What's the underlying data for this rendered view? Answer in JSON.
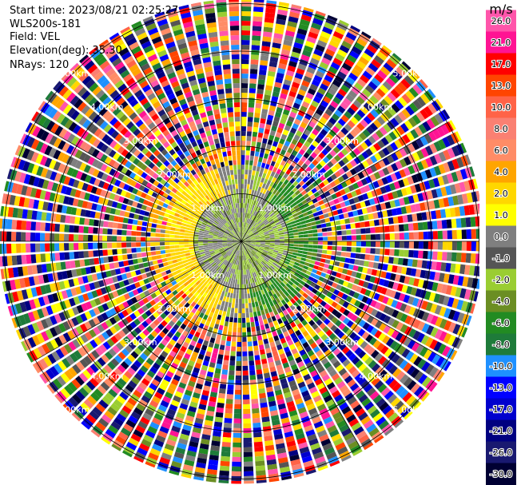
{
  "header": {
    "start_time": "Start time: 2023/08/21 02:25:27",
    "instrument": "WLS200s-181",
    "field": "Field: VEL",
    "elevation": "Elevation(deg): 35.30",
    "nrays": "NRays: 120"
  },
  "colorbar": {
    "unit": "m/s",
    "ticks": [
      "26.0",
      "21.0",
      "17.0",
      "13.0",
      "10.0",
      "8.0",
      "6.0",
      "4.0",
      "2.0",
      "1.0",
      "0.0",
      "-1.0",
      "-2.0",
      "-4.0",
      "-6.0",
      "-8.0",
      "-10.0",
      "-13.0",
      "-17.0",
      "-21.0",
      "-26.0",
      "-30.0"
    ],
    "colors": [
      "#ff55aa",
      "#ff1493",
      "#ff0000",
      "#ff4500",
      "#ff6347",
      "#fa8072",
      "#ff8c66",
      "#ffa500",
      "#ffd700",
      "#ffff00",
      "#7f7f7f",
      "#555555",
      "#9acd32",
      "#6b8e23",
      "#228b22",
      "#1e7b3a",
      "#1e90ff",
      "#0000ff",
      "#0000cd",
      "#000080",
      "#191970",
      "#000033"
    ]
  },
  "chart_data": {
    "type": "heatmap",
    "title": "",
    "projection": "polar (PPI)",
    "field": "VEL",
    "units": "m/s",
    "n_rays": 120,
    "elevation_deg": 35.3,
    "ring_labels": [
      "1.00km",
      "2.00km",
      "3.00km",
      "4.00km",
      "5.00km"
    ],
    "range_rings_km": [
      1,
      2,
      3,
      4,
      5
    ],
    "colorbar_range": [
      -30.0,
      26.0
    ],
    "description_of_values": {
      "inner_0_to_1km": "low magnitude, mixed gray (0.0) and olive/green (-2.0 to -4.0) velocities",
      "annulus_1_to_2km": "positive +2 to +6 m/s (yellow/orange) on west half, negative -4 to -6 m/s (green) on east half",
      "beyond_2km": "noisy random values spanning full colorbar range"
    }
  }
}
